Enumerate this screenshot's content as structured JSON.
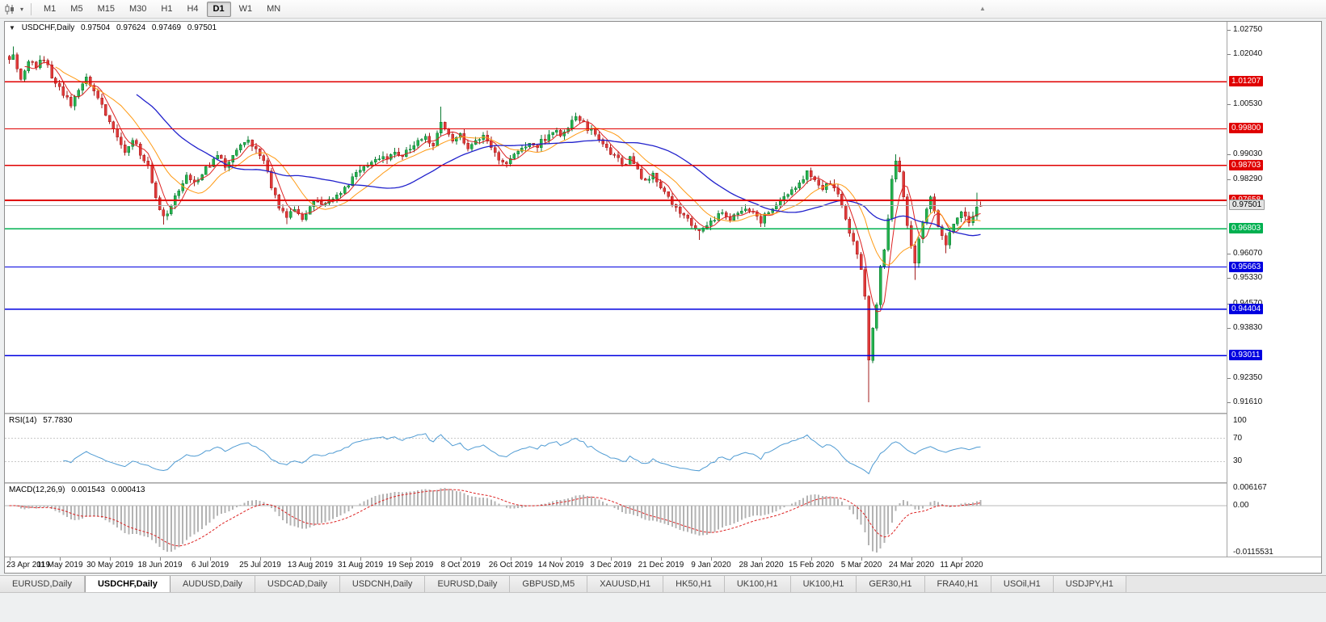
{
  "toolbar": {
    "dropdown_icon": "▾",
    "scroll_up_icon": "▲",
    "timeframes": [
      {
        "label": "M1",
        "active": false
      },
      {
        "label": "M5",
        "active": false
      },
      {
        "label": "M15",
        "active": false
      },
      {
        "label": "M30",
        "active": false
      },
      {
        "label": "H1",
        "active": false
      },
      {
        "label": "H4",
        "active": false
      },
      {
        "label": "D1",
        "active": true
      },
      {
        "label": "W1",
        "active": false
      },
      {
        "label": "MN",
        "active": false
      }
    ]
  },
  "chart": {
    "header": {
      "dropdown": "▼",
      "title": "USDCHF,Daily",
      "open": "0.97504",
      "high": "0.97624",
      "low": "0.97469",
      "close": "0.97501"
    },
    "bars": 253,
    "bars_per_label": 13,
    "last_close": 0.97501,
    "price_scale": {
      "ticks": [
        "1.02750",
        "1.02040",
        "1.00530",
        "0.99030",
        "0.98290",
        "0.96070",
        "0.95330",
        "0.94570",
        "0.93830",
        "0.92350",
        "0.91610"
      ],
      "badges": [
        {
          "label": "1.01207",
          "bg": "#e00000",
          "fg": "#ffffff",
          "outlined": false
        },
        {
          "label": "0.99800",
          "bg": "#e00000",
          "fg": "#ffffff",
          "outlined": false
        },
        {
          "label": "0.98703",
          "bg": "#e00000",
          "fg": "#ffffff",
          "outlined": false
        },
        {
          "label": "0.97658",
          "bg": "#e00000",
          "fg": "#ffffff",
          "outlined": false
        },
        {
          "label": "0.97501",
          "bg": "#e3e3e3",
          "fg": "#000000",
          "outlined": true
        },
        {
          "label": "0.96803",
          "bg": "#00b050",
          "fg": "#ffffff",
          "outlined": false
        },
        {
          "label": "0.95663",
          "bg": "#0000e0",
          "fg": "#ffffff",
          "outlined": false
        },
        {
          "label": "0.94404",
          "bg": "#0000e0",
          "fg": "#ffffff",
          "outlined": false
        },
        {
          "label": "0.93011",
          "bg": "#0000e0",
          "fg": "#ffffff",
          "outlined": false
        }
      ]
    },
    "levels": [
      {
        "label": "1.01207",
        "color": "#e00000",
        "width": 1.3
      },
      {
        "label": "0.99800",
        "color": "#e00000",
        "width": 1.3
      },
      {
        "label": "0.98703",
        "color": "#e00000",
        "width": 1.3
      },
      {
        "label": "0.97658",
        "color": "#e00000",
        "width": 2
      },
      {
        "label": "0.97501",
        "color": "#b0b0b0",
        "width": 1
      },
      {
        "label": "0.96803",
        "color": "#00b050",
        "width": 1.6
      },
      {
        "label": "0.95663",
        "color": "#0000e0",
        "width": 1.4
      },
      {
        "label": "0.94404",
        "color": "#0000e0",
        "width": 1.4
      },
      {
        "label": "0.93011",
        "color": "#0000e0",
        "width": 1.4
      }
    ],
    "dates": [
      "23 Apr 2019",
      "11 May 2019",
      "30 May 2019",
      "18 Jun 2019",
      "6 Jul 2019",
      "25 Jul 2019",
      "13 Aug 2019",
      "31 Aug 2019",
      "19 Sep 2019",
      "8 Oct 2019",
      "26 Oct 2019",
      "14 Nov 2019",
      "3 Dec 2019",
      "21 Dec 2019",
      "9 Jan 2020",
      "28 Jan 2020",
      "15 Feb 2020",
      "5 Mar 2020",
      "24 Mar 2020",
      "11 Apr 2020"
    ],
    "close_anchors": [
      [
        0,
        1.0185
      ],
      [
        1,
        1.0205
      ],
      [
        3,
        1.0125
      ],
      [
        5,
        1.0185
      ],
      [
        7,
        1.017
      ],
      [
        9,
        1.019
      ],
      [
        11,
        1.014
      ],
      [
        13,
        1.01
      ],
      [
        15,
        1.007
      ],
      [
        16,
        1.0048
      ],
      [
        18,
        1.0095
      ],
      [
        20,
        1.0135
      ],
      [
        22,
        1.01
      ],
      [
        24,
        1.0045
      ],
      [
        26,
        1.0008
      ],
      [
        28,
        0.995
      ],
      [
        30,
        0.9915
      ],
      [
        32,
        0.9948
      ],
      [
        34,
        0.9905
      ],
      [
        36,
        0.9868
      ],
      [
        38,
        0.9765
      ],
      [
        40,
        0.9712
      ],
      [
        42,
        0.9748
      ],
      [
        44,
        0.98
      ],
      [
        46,
        0.9838
      ],
      [
        48,
        0.982
      ],
      [
        50,
        0.9848
      ],
      [
        52,
        0.9872
      ],
      [
        54,
        0.9898
      ],
      [
        56,
        0.9872
      ],
      [
        58,
        0.9902
      ],
      [
        60,
        0.9928
      ],
      [
        62,
        0.9938
      ],
      [
        64,
        0.9912
      ],
      [
        66,
        0.9885
      ],
      [
        68,
        0.9805
      ],
      [
        70,
        0.9745
      ],
      [
        72,
        0.9718
      ],
      [
        74,
        0.9735
      ],
      [
        76,
        0.9712
      ],
      [
        78,
        0.9748
      ],
      [
        80,
        0.9762
      ],
      [
        82,
        0.9748
      ],
      [
        84,
        0.9778
      ],
      [
        86,
        0.9795
      ],
      [
        88,
        0.9815
      ],
      [
        90,
        0.9842
      ],
      [
        92,
        0.9858
      ],
      [
        94,
        0.9872
      ],
      [
        96,
        0.9898
      ],
      [
        98,
        0.9888
      ],
      [
        100,
        0.9912
      ],
      [
        102,
        0.9898
      ],
      [
        104,
        0.9922
      ],
      [
        106,
        0.9938
      ],
      [
        108,
        0.995
      ],
      [
        110,
        0.9932
      ],
      [
        112,
        1.0
      ],
      [
        113,
        0.9985
      ],
      [
        115,
        0.994
      ],
      [
        117,
        0.9958
      ],
      [
        119,
        0.9922
      ],
      [
        121,
        0.9942
      ],
      [
        123,
        0.9958
      ],
      [
        125,
        0.9922
      ],
      [
        127,
        0.9892
      ],
      [
        129,
        0.9872
      ],
      [
        131,
        0.9898
      ],
      [
        133,
        0.9922
      ],
      [
        135,
        0.9942
      ],
      [
        137,
        0.9932
      ],
      [
        139,
        0.9952
      ],
      [
        141,
        0.9975
      ],
      [
        143,
        0.9962
      ],
      [
        145,
        0.999
      ],
      [
        147,
        1.0012
      ],
      [
        149,
        0.9995
      ],
      [
        151,
        0.9972
      ],
      [
        153,
        0.9952
      ],
      [
        155,
        0.9922
      ],
      [
        157,
        0.9902
      ],
      [
        159,
        0.9872
      ],
      [
        161,
        0.9888
      ],
      [
        163,
        0.9852
      ],
      [
        165,
        0.9822
      ],
      [
        167,
        0.9842
      ],
      [
        169,
        0.9802
      ],
      [
        171,
        0.9778
      ],
      [
        173,
        0.9742
      ],
      [
        175,
        0.9722
      ],
      [
        177,
        0.9692
      ],
      [
        179,
        0.9665
      ],
      [
        181,
        0.9692
      ],
      [
        183,
        0.9712
      ],
      [
        185,
        0.9732
      ],
      [
        187,
        0.9705
      ],
      [
        189,
        0.9728
      ],
      [
        191,
        0.9748
      ],
      [
        193,
        0.9722
      ],
      [
        195,
        0.9702
      ],
      [
        197,
        0.9732
      ],
      [
        199,
        0.9752
      ],
      [
        201,
        0.9778
      ],
      [
        203,
        0.9792
      ],
      [
        205,
        0.9812
      ],
      [
        207,
        0.9848
      ],
      [
        209,
        0.9832
      ],
      [
        211,
        0.9802
      ],
      [
        213,
        0.9822
      ],
      [
        215,
        0.9782
      ],
      [
        217,
        0.9702
      ],
      [
        219,
        0.9642
      ],
      [
        221,
        0.9562
      ],
      [
        222,
        0.9482
      ],
      [
        223,
        0.9285
      ],
      [
        224,
        0.9382
      ],
      [
        225,
        0.9452
      ],
      [
        226,
        0.9562
      ],
      [
        227,
        0.9622
      ],
      [
        228,
        0.9702
      ],
      [
        229,
        0.9822
      ],
      [
        230,
        0.9882
      ],
      [
        231,
        0.9842
      ],
      [
        232,
        0.9782
      ],
      [
        233,
        0.9692
      ],
      [
        234,
        0.9622
      ],
      [
        235,
        0.9572
      ],
      [
        236,
        0.9642
      ],
      [
        237,
        0.9702
      ],
      [
        238,
        0.9748
      ],
      [
        239,
        0.9772
      ],
      [
        240,
        0.9732
      ],
      [
        241,
        0.9692
      ],
      [
        242,
        0.9652
      ],
      [
        243,
        0.9628
      ],
      [
        244,
        0.9662
      ],
      [
        245,
        0.9692
      ],
      [
        246,
        0.9712
      ],
      [
        247,
        0.9732
      ],
      [
        248,
        0.9722
      ],
      [
        249,
        0.9702
      ],
      [
        250,
        0.9718
      ],
      [
        251,
        0.9742
      ],
      [
        252,
        0.97501
      ]
    ],
    "overrides": [
      {
        "i": 1,
        "high": 1.0226
      },
      {
        "i": 16,
        "low": 1.0041
      },
      {
        "i": 40,
        "low": 0.9693
      },
      {
        "i": 72,
        "low": 0.9695
      },
      {
        "i": 112,
        "high": 1.0046
      },
      {
        "i": 147,
        "high": 1.0028
      },
      {
        "i": 179,
        "low": 0.9647
      },
      {
        "i": 207,
        "high": 0.9852
      },
      {
        "i": 223,
        "low": 0.9161
      },
      {
        "i": 230,
        "high": 0.9903
      },
      {
        "i": 235,
        "low": 0.9528
      },
      {
        "i": 243,
        "low": 0.9608
      },
      {
        "i": 251,
        "high": 0.9789
      },
      {
        "i": 252,
        "open": 0.97504,
        "high": 0.97624,
        "low": 0.97469,
        "close": 0.97501
      }
    ],
    "candle_colors": {
      "up_fill": "#25b24e",
      "up_stroke": "#0b7a33",
      "down_fill": "#e03a3a",
      "down_stroke": "#a31d1d"
    },
    "ma": [
      {
        "period": 5,
        "color": "#dd2222",
        "width": 1
      },
      {
        "period": 13,
        "color": "#ff9a14",
        "width": 1
      },
      {
        "period": 34,
        "color": "#2121cc",
        "width": 1.3
      }
    ]
  },
  "rsi": {
    "label": "RSI(14)",
    "value": "57.7830",
    "period": 14,
    "line_color": "#4f9bd3",
    "levels": [
      {
        "label": "100",
        "value": 100
      },
      {
        "label": "70",
        "value": 70
      },
      {
        "label": "30",
        "value": 30
      }
    ]
  },
  "macd": {
    "label": "MACD(12,26,9)",
    "value_main": "0.001543",
    "value_signal": "0.000413",
    "fast": 12,
    "slow": 26,
    "signal_period": 9,
    "hist_color": "#b3b3b3",
    "signal_color": "#dd2222",
    "axis_top": "0.006167",
    "axis_zero": "0.00",
    "axis_bottom": "-0.0115531"
  },
  "tabs": [
    {
      "label": "EURUSD,Daily",
      "active": false
    },
    {
      "label": "USDCHF,Daily",
      "active": true
    },
    {
      "label": "AUDUSD,Daily",
      "active": false
    },
    {
      "label": "USDCAD,Daily",
      "active": false
    },
    {
      "label": "USDCNH,Daily",
      "active": false
    },
    {
      "label": "EURUSD,Daily",
      "active": false
    },
    {
      "label": "GBPUSD,M5",
      "active": false
    },
    {
      "label": "XAUUSD,H1",
      "active": false
    },
    {
      "label": "HK50,H1",
      "active": false
    },
    {
      "label": "UK100,H1",
      "active": false
    },
    {
      "label": "UK100,H1",
      "active": false
    },
    {
      "label": "GER30,H1",
      "active": false
    },
    {
      "label": "FRA40,H1",
      "active": false
    },
    {
      "label": "USOil,H1",
      "active": false
    },
    {
      "label": "USDJPY,H1",
      "active": false
    }
  ]
}
